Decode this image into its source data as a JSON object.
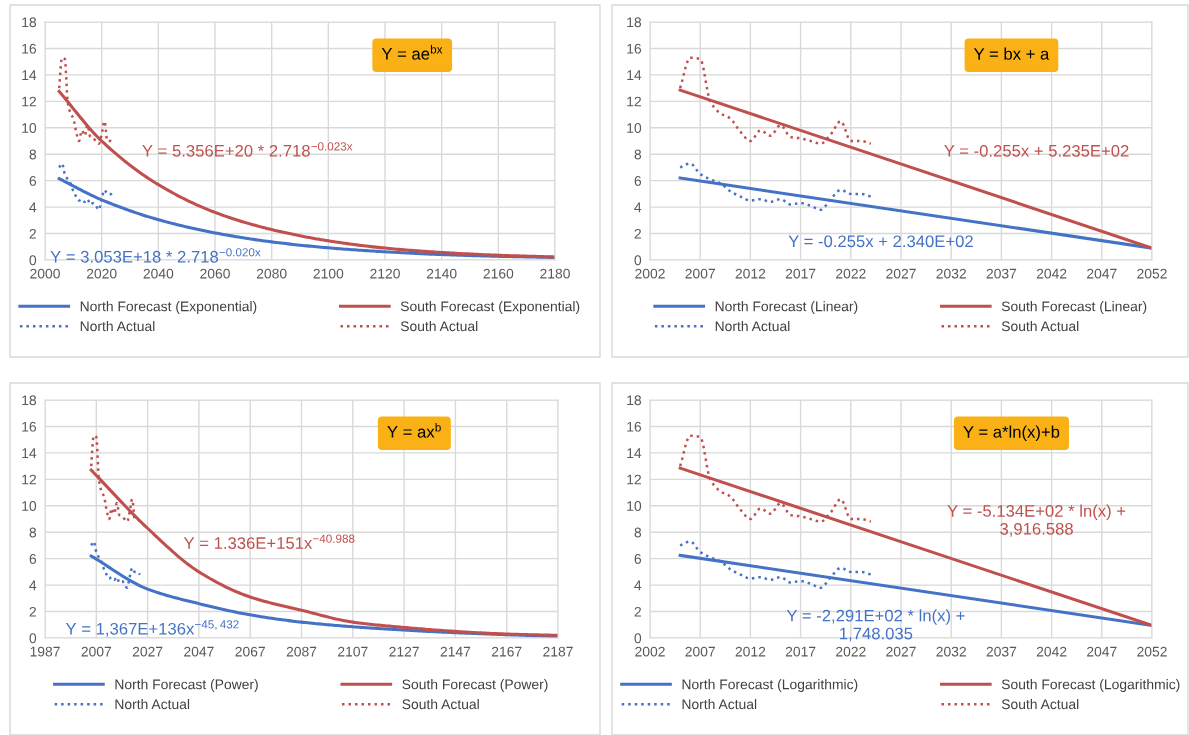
{
  "chart_data": [
    {
      "type": "line",
      "xlim": [
        2000,
        2180
      ],
      "xticks": [
        2000,
        2020,
        2040,
        2060,
        2080,
        2100,
        2120,
        2140,
        2160,
        2180
      ],
      "ylim": [
        0,
        18
      ],
      "yticks": [
        0,
        2,
        4,
        6,
        8,
        10,
        12,
        14,
        16,
        18
      ],
      "grid": true,
      "legend": "bottom",
      "marker": "none",
      "annotations": [
        "Y = ae$^{bx}$",
        "Y = 3.053E+18 * 2.718$^{−0.020x}$",
        "Y = 5.356E+20 * 2.718$^{−0.023x}$"
      ],
      "series": [
        {
          "name": "North Forecast (Exponential)",
          "color": "#4472c4",
          "line_style": "solid",
          "x": [
            2005,
            2020,
            2040,
            2060,
            2080,
            2100,
            2120,
            2140,
            2160,
            2180
          ],
          "values": [
            6.15,
            4.55,
            3.05,
            2.05,
            1.37,
            0.92,
            0.62,
            0.41,
            0.28,
            0.19
          ]
        },
        {
          "name": "South Forecast (Exponential)",
          "color": "#c0504d",
          "line_style": "solid",
          "x": [
            2005,
            2020,
            2040,
            2060,
            2080,
            2100,
            2120,
            2140,
            2160,
            2180
          ],
          "values": [
            12.75,
            9.0,
            5.7,
            3.6,
            2.3,
            1.45,
            0.9,
            0.57,
            0.36,
            0.23
          ]
        },
        {
          "name": "North Actual",
          "color": "#4472c4",
          "line_style": "dotted",
          "x": [
            2005,
            2006,
            2007,
            2008,
            2009,
            2010,
            2011,
            2012,
            2013,
            2014,
            2015,
            2016,
            2017,
            2018,
            2019,
            2020,
            2021,
            2022,
            2023,
            2024
          ],
          "values": [
            7.0,
            7.3,
            6.5,
            6.1,
            5.8,
            5.2,
            4.8,
            4.5,
            4.6,
            4.4,
            4.6,
            4.2,
            4.3,
            4.1,
            3.8,
            4.6,
            5.3,
            5.0,
            5.0,
            4.8
          ]
        },
        {
          "name": "South Actual",
          "color": "#c0504d",
          "line_style": "dotted",
          "x": [
            2005,
            2006,
            2007,
            2008,
            2009,
            2010,
            2011,
            2012,
            2013,
            2014,
            2015,
            2016,
            2017,
            2018,
            2019,
            2020,
            2021,
            2022,
            2023,
            2024
          ],
          "values": [
            13.0,
            15.3,
            15.2,
            12.0,
            11.1,
            10.7,
            9.7,
            9.0,
            9.8,
            9.4,
            10.2,
            9.3,
            9.2,
            9.0,
            8.8,
            9.5,
            10.5,
            9.0,
            9.0,
            8.8
          ]
        }
      ]
    },
    {
      "type": "line",
      "xlim": [
        2002,
        2052
      ],
      "xticks": [
        2002,
        2007,
        2012,
        2017,
        2022,
        2027,
        2032,
        2037,
        2042,
        2047,
        2052
      ],
      "ylim": [
        0,
        18
      ],
      "yticks": [
        0,
        2,
        4,
        6,
        8,
        10,
        12,
        14,
        16,
        18
      ],
      "grid": true,
      "legend": "bottom",
      "marker": "none",
      "annotations": [
        "Y = bx + a",
        "Y = -0.255x + 2.340E+02",
        "Y = -0.255x + 5.235E+02"
      ],
      "series": [
        {
          "name": "North Forecast (Linear)",
          "color": "#4472c4",
          "line_style": "solid",
          "x": [
            2005,
            2052
          ],
          "values": [
            6.2,
            0.9
          ]
        },
        {
          "name": "South Forecast (Linear)",
          "color": "#c0504d",
          "line_style": "solid",
          "x": [
            2005,
            2052
          ],
          "values": [
            12.85,
            0.9
          ]
        },
        {
          "name": "North Actual",
          "color": "#4472c4",
          "line_style": "dotted",
          "x": [
            2005,
            2006,
            2007,
            2008,
            2009,
            2010,
            2011,
            2012,
            2013,
            2014,
            2015,
            2016,
            2017,
            2018,
            2019,
            2020,
            2021,
            2022,
            2023,
            2024
          ],
          "values": [
            7.0,
            7.3,
            6.5,
            6.1,
            5.8,
            5.2,
            4.8,
            4.5,
            4.6,
            4.4,
            4.6,
            4.2,
            4.3,
            4.1,
            3.8,
            4.6,
            5.3,
            5.0,
            5.0,
            4.8
          ]
        },
        {
          "name": "South Actual",
          "color": "#c0504d",
          "line_style": "dotted",
          "x": [
            2005,
            2006,
            2007,
            2008,
            2009,
            2010,
            2011,
            2012,
            2013,
            2014,
            2015,
            2016,
            2017,
            2018,
            2019,
            2020,
            2021,
            2022,
            2023,
            2024
          ],
          "values": [
            13.0,
            15.3,
            15.2,
            12.0,
            11.1,
            10.7,
            9.7,
            9.0,
            9.8,
            9.4,
            10.2,
            9.3,
            9.2,
            9.0,
            8.8,
            9.5,
            10.5,
            9.0,
            9.0,
            8.8
          ]
        }
      ]
    },
    {
      "type": "line",
      "xlim": [
        1987,
        2187
      ],
      "xticks": [
        1987,
        2007,
        2027,
        2047,
        2067,
        2087,
        2107,
        2127,
        2147,
        2167,
        2187
      ],
      "ylim": [
        0,
        18
      ],
      "yticks": [
        0,
        2,
        4,
        6,
        8,
        10,
        12,
        14,
        16,
        18
      ],
      "grid": true,
      "legend": "bottom",
      "marker": "none",
      "annotations": [
        "Y = ax$^{b}$",
        "Y = 1,367E+136x$^{−45,432}$",
        "Y = 1.336E+151x$^{−40.988}$"
      ],
      "series": [
        {
          "name": "North Forecast (Power)",
          "color": "#4472c4",
          "line_style": "solid",
          "x": [
            2005,
            2027,
            2047,
            2067,
            2087,
            2107,
            2127,
            2147,
            2167,
            2187
          ],
          "values": [
            6.2,
            3.7,
            2.6,
            1.75,
            1.2,
            0.85,
            0.6,
            0.4,
            0.25,
            0.12
          ]
        },
        {
          "name": "South Forecast (Power)",
          "color": "#c0504d",
          "line_style": "solid",
          "x": [
            2005,
            2027,
            2047,
            2067,
            2087,
            2107,
            2127,
            2147,
            2167,
            2187
          ],
          "values": [
            12.7,
            8.3,
            5.0,
            3.1,
            2.1,
            1.2,
            0.8,
            0.5,
            0.3,
            0.2
          ]
        },
        {
          "name": "North Actual",
          "color": "#4472c4",
          "line_style": "dotted",
          "x": [
            2005,
            2006,
            2007,
            2008,
            2009,
            2010,
            2011,
            2012,
            2013,
            2014,
            2015,
            2016,
            2017,
            2018,
            2019,
            2020,
            2021,
            2022,
            2023,
            2024
          ],
          "values": [
            7.0,
            7.3,
            6.5,
            6.1,
            5.8,
            5.2,
            4.8,
            4.5,
            4.6,
            4.4,
            4.6,
            4.2,
            4.3,
            4.1,
            3.8,
            4.6,
            5.3,
            5.0,
            5.0,
            4.8
          ]
        },
        {
          "name": "South Actual",
          "color": "#c0504d",
          "line_style": "dotted",
          "x": [
            2005,
            2006,
            2007,
            2008,
            2009,
            2010,
            2011,
            2012,
            2013,
            2014,
            2015,
            2016,
            2017,
            2018,
            2019,
            2020,
            2021,
            2022,
            2023,
            2024
          ],
          "values": [
            13.0,
            15.3,
            15.2,
            12.0,
            11.1,
            10.7,
            9.7,
            9.0,
            9.8,
            9.4,
            10.2,
            9.3,
            9.2,
            9.0,
            8.8,
            9.5,
            10.5,
            9.0,
            9.0,
            8.8
          ]
        }
      ]
    },
    {
      "type": "line",
      "xlim": [
        2002,
        2052
      ],
      "xticks": [
        2002,
        2007,
        2012,
        2017,
        2022,
        2027,
        2032,
        2037,
        2042,
        2047,
        2052
      ],
      "ylim": [
        0,
        18
      ],
      "yticks": [
        0,
        2,
        4,
        6,
        8,
        10,
        12,
        14,
        16,
        18
      ],
      "grid": true,
      "legend": "bottom",
      "marker": "none",
      "annotations": [
        "Y = a*ln(x)+b",
        "Y = -2,291E+02 * ln(x) +\n1,748.035",
        "Y = -5.134E+02 * ln(x) +\n3,916.588"
      ],
      "series": [
        {
          "name": "North Forecast (Logarithmic)",
          "color": "#4472c4",
          "line_style": "solid",
          "x": [
            2005,
            2052
          ],
          "values": [
            6.25,
            0.95
          ]
        },
        {
          "name": "South Forecast (Logarithmic)",
          "color": "#c0504d",
          "line_style": "solid",
          "x": [
            2005,
            2052
          ],
          "values": [
            12.85,
            0.95
          ]
        },
        {
          "name": "North Actual",
          "color": "#4472c4",
          "line_style": "dotted",
          "x": [
            2005,
            2006,
            2007,
            2008,
            2009,
            2010,
            2011,
            2012,
            2013,
            2014,
            2015,
            2016,
            2017,
            2018,
            2019,
            2020,
            2021,
            2022,
            2023,
            2024
          ],
          "values": [
            7.0,
            7.3,
            6.5,
            6.1,
            5.8,
            5.2,
            4.8,
            4.5,
            4.6,
            4.4,
            4.6,
            4.2,
            4.3,
            4.1,
            3.8,
            4.6,
            5.3,
            5.0,
            5.0,
            4.8
          ]
        },
        {
          "name": "South Actual",
          "color": "#c0504d",
          "line_style": "dotted",
          "x": [
            2005,
            2006,
            2007,
            2008,
            2009,
            2010,
            2011,
            2012,
            2013,
            2014,
            2015,
            2016,
            2017,
            2018,
            2019,
            2020,
            2021,
            2022,
            2023,
            2024
          ],
          "values": [
            13.0,
            15.3,
            15.2,
            12.0,
            11.1,
            10.7,
            9.7,
            9.0,
            9.8,
            9.4,
            10.2,
            9.3,
            9.2,
            9.0,
            8.8,
            9.5,
            10.5,
            9.0,
            9.0,
            8.8
          ]
        }
      ]
    }
  ]
}
